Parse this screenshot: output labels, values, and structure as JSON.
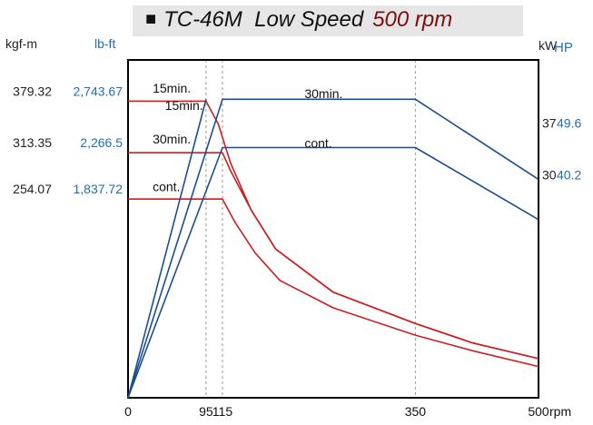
{
  "title": {
    "marker": "■",
    "model": "TC-46M",
    "mode": "Low Speed",
    "speed": "500 rpm"
  },
  "units": {
    "torque_metric": "kgf-m",
    "torque_imperial": "lb-ft",
    "power_metric": "kW",
    "power_imperial": "HP",
    "speed": "rpm"
  },
  "colors": {
    "torque": "#cc1f1f",
    "power": "#1a4f8f",
    "imperial": "#1f6fb5",
    "metric": "#222222",
    "grid": "#999999"
  },
  "chart_data": {
    "type": "line",
    "xlabel": "rpm",
    "xlim": [
      0,
      500
    ],
    "x_ticks": [
      0,
      95,
      115,
      350,
      500
    ],
    "x_tick_labels": [
      "0",
      "95",
      "115",
      "350",
      "500"
    ],
    "vertical_gridlines": [
      95,
      115,
      350
    ],
    "torque_ticks": [
      {
        "kgf_m": "379.32",
        "lb_ft": "2,743.67",
        "value": 379.32
      },
      {
        "kgf_m": "313.35",
        "lb_ft": "2,266.5",
        "value": 313.35
      },
      {
        "kgf_m": "254.07",
        "lb_ft": "1,837.72",
        "value": 254.07
      }
    ],
    "power_ticks": [
      {
        "kw": "37",
        "hp": "49.6",
        "value": 37
      },
      {
        "kw": "30",
        "hp": "40.2",
        "value": 30
      }
    ],
    "torque_range": [
      0,
      432
    ],
    "power_range": [
      0,
      45.5
    ],
    "series": [
      {
        "name": "15min.",
        "kind": "torque",
        "points": [
          [
            0,
            379.32
          ],
          [
            95,
            379.32
          ],
          [
            110,
            350
          ],
          [
            125,
            300
          ],
          [
            150,
            240
          ],
          [
            180,
            190
          ],
          [
            250,
            135
          ],
          [
            350,
            95
          ],
          [
            420,
            70
          ],
          [
            500,
            50
          ]
        ]
      },
      {
        "name": "30min.",
        "kind": "torque",
        "points": [
          [
            0,
            313.35
          ],
          [
            115,
            313.35
          ],
          [
            125,
            290
          ],
          [
            150,
            240
          ],
          [
            180,
            190
          ],
          [
            250,
            135
          ],
          [
            350,
            95
          ],
          [
            420,
            70
          ],
          [
            500,
            50
          ]
        ]
      },
      {
        "name": "cont.",
        "kind": "torque",
        "points": [
          [
            0,
            254.07
          ],
          [
            115,
            254.07
          ],
          [
            130,
            225
          ],
          [
            155,
            185
          ],
          [
            185,
            150
          ],
          [
            250,
            115
          ],
          [
            350,
            80
          ],
          [
            420,
            60
          ],
          [
            500,
            40
          ]
        ]
      },
      {
        "name": "15min.",
        "kind": "power",
        "points": [
          [
            0,
            0
          ],
          [
            95,
            40.2
          ]
        ]
      },
      {
        "name": "30min.",
        "kind": "power",
        "points": [
          [
            0,
            0
          ],
          [
            115,
            40.2
          ],
          [
            350,
            40.2
          ],
          [
            500,
            29.4
          ]
        ]
      },
      {
        "name": "cont.",
        "kind": "power",
        "points": [
          [
            0,
            0
          ],
          [
            115,
            33.7
          ],
          [
            350,
            33.7
          ],
          [
            500,
            24.0
          ]
        ]
      }
    ],
    "curve_labels": [
      {
        "text": "15min.",
        "x": 30,
        "y": 390,
        "kind": "torque"
      },
      {
        "text": "15min.",
        "x": 45,
        "y": 368,
        "kind": "torque"
      },
      {
        "text": "30min.",
        "x": 30,
        "y": 325,
        "kind": "torque"
      },
      {
        "text": "cont.",
        "x": 30,
        "y": 264,
        "kind": "torque"
      },
      {
        "text": "30min.",
        "x": 215,
        "y": 383,
        "kind": "torque"
      },
      {
        "text": "cont.",
        "x": 215,
        "y": 320,
        "kind": "torque"
      }
    ]
  }
}
